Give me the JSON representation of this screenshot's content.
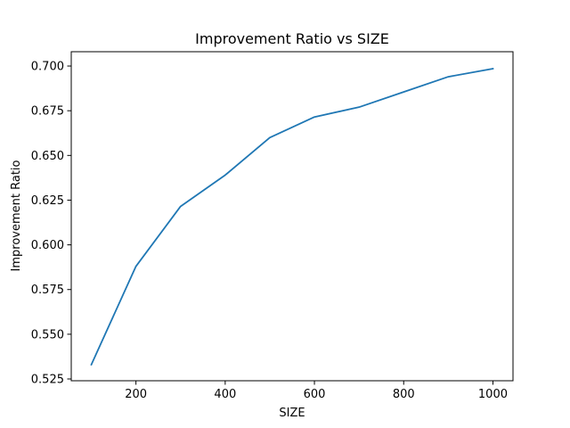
{
  "chart_data": {
    "type": "line",
    "title": "Improvement Ratio vs SIZE",
    "xlabel": "SIZE",
    "ylabel": "Improvement Ratio",
    "xlim": [
      55,
      1045
    ],
    "ylim": [
      0.524,
      0.708
    ],
    "x_ticks": [
      200,
      400,
      600,
      800,
      1000
    ],
    "x_tick_labels": [
      "200",
      "400",
      "600",
      "800",
      "1000"
    ],
    "y_ticks": [
      0.525,
      0.55,
      0.575,
      0.6,
      0.625,
      0.65,
      0.675,
      0.7
    ],
    "y_tick_labels": [
      "0.525",
      "0.550",
      "0.575",
      "0.600",
      "0.625",
      "0.650",
      "0.675",
      "0.700"
    ],
    "grid": false,
    "series": [
      {
        "color": "#1f77b4",
        "x": [
          100,
          200,
          300,
          400,
          500,
          600,
          700,
          800,
          900,
          1000
        ],
        "y": [
          0.533,
          0.588,
          0.6215,
          0.639,
          0.66,
          0.6715,
          0.677,
          0.6855,
          0.694,
          0.6985
        ]
      }
    ]
  }
}
